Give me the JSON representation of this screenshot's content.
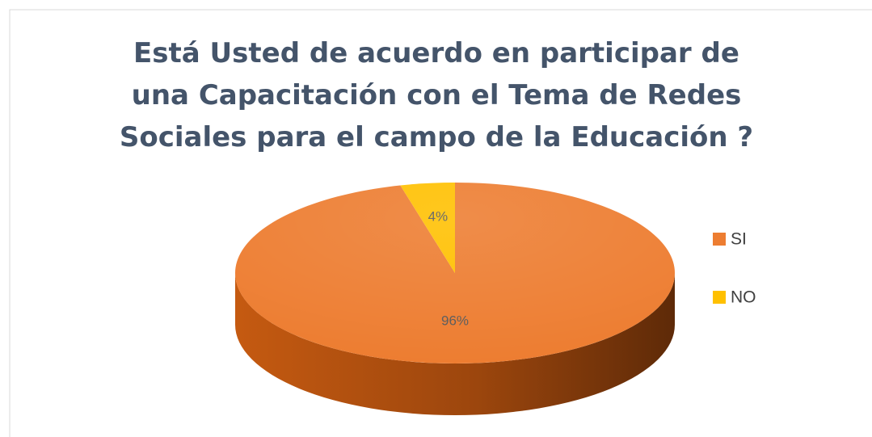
{
  "chart_data": {
    "type": "pie",
    "title": "Está Usted de acuerdo en participar de una Capacitación con el Tema de Redes Sociales para el campo de la Educación ?",
    "categories": [
      "SI",
      "NO"
    ],
    "values": [
      96,
      4
    ],
    "value_labels": [
      "96%",
      "4%"
    ],
    "colors": [
      "#ed7d31",
      "#ffc000"
    ],
    "legend": "right"
  }
}
